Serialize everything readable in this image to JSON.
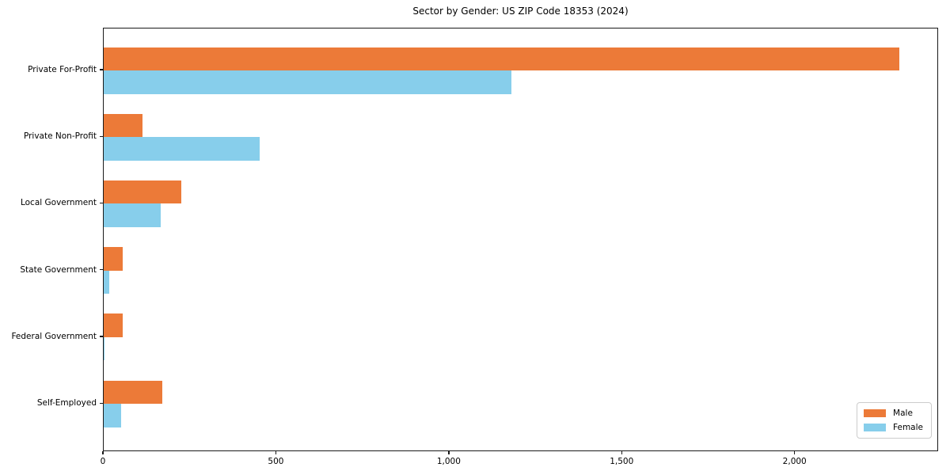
{
  "chart_data": {
    "type": "bar",
    "orientation": "horizontal",
    "title": "Sector by Gender: US ZIP Code 18353 (2024)",
    "xlabel": "",
    "ylabel": "",
    "categories": [
      "Private For-Profit",
      "Private Non-Profit",
      "Local Government",
      "State Government",
      "Federal Government",
      "Self-Employed"
    ],
    "series": [
      {
        "name": "Male",
        "color": "#EC7A38",
        "values": [
          2300,
          112,
          225,
          55,
          55,
          170
        ]
      },
      {
        "name": "Female",
        "color": "#87CEEB",
        "values": [
          1180,
          450,
          165,
          15,
          2,
          50
        ]
      }
    ],
    "xlim": [
      0,
      2415
    ],
    "xticks": [
      0,
      500,
      1000,
      1500,
      2000
    ],
    "xtick_labels": [
      "0",
      "500",
      "1,000",
      "1,500",
      "2,000"
    ],
    "grid": false,
    "legend_position": "lower right"
  },
  "legend": {
    "items": [
      {
        "label": "Male",
        "color": "#EC7A38"
      },
      {
        "label": "Female",
        "color": "#87CEEB"
      }
    ]
  },
  "colors": {
    "male": "#EC7A38",
    "female": "#87CEEB",
    "spine": "#1a1a1a",
    "background": "#ffffff",
    "legend_border": "#cccccc"
  }
}
